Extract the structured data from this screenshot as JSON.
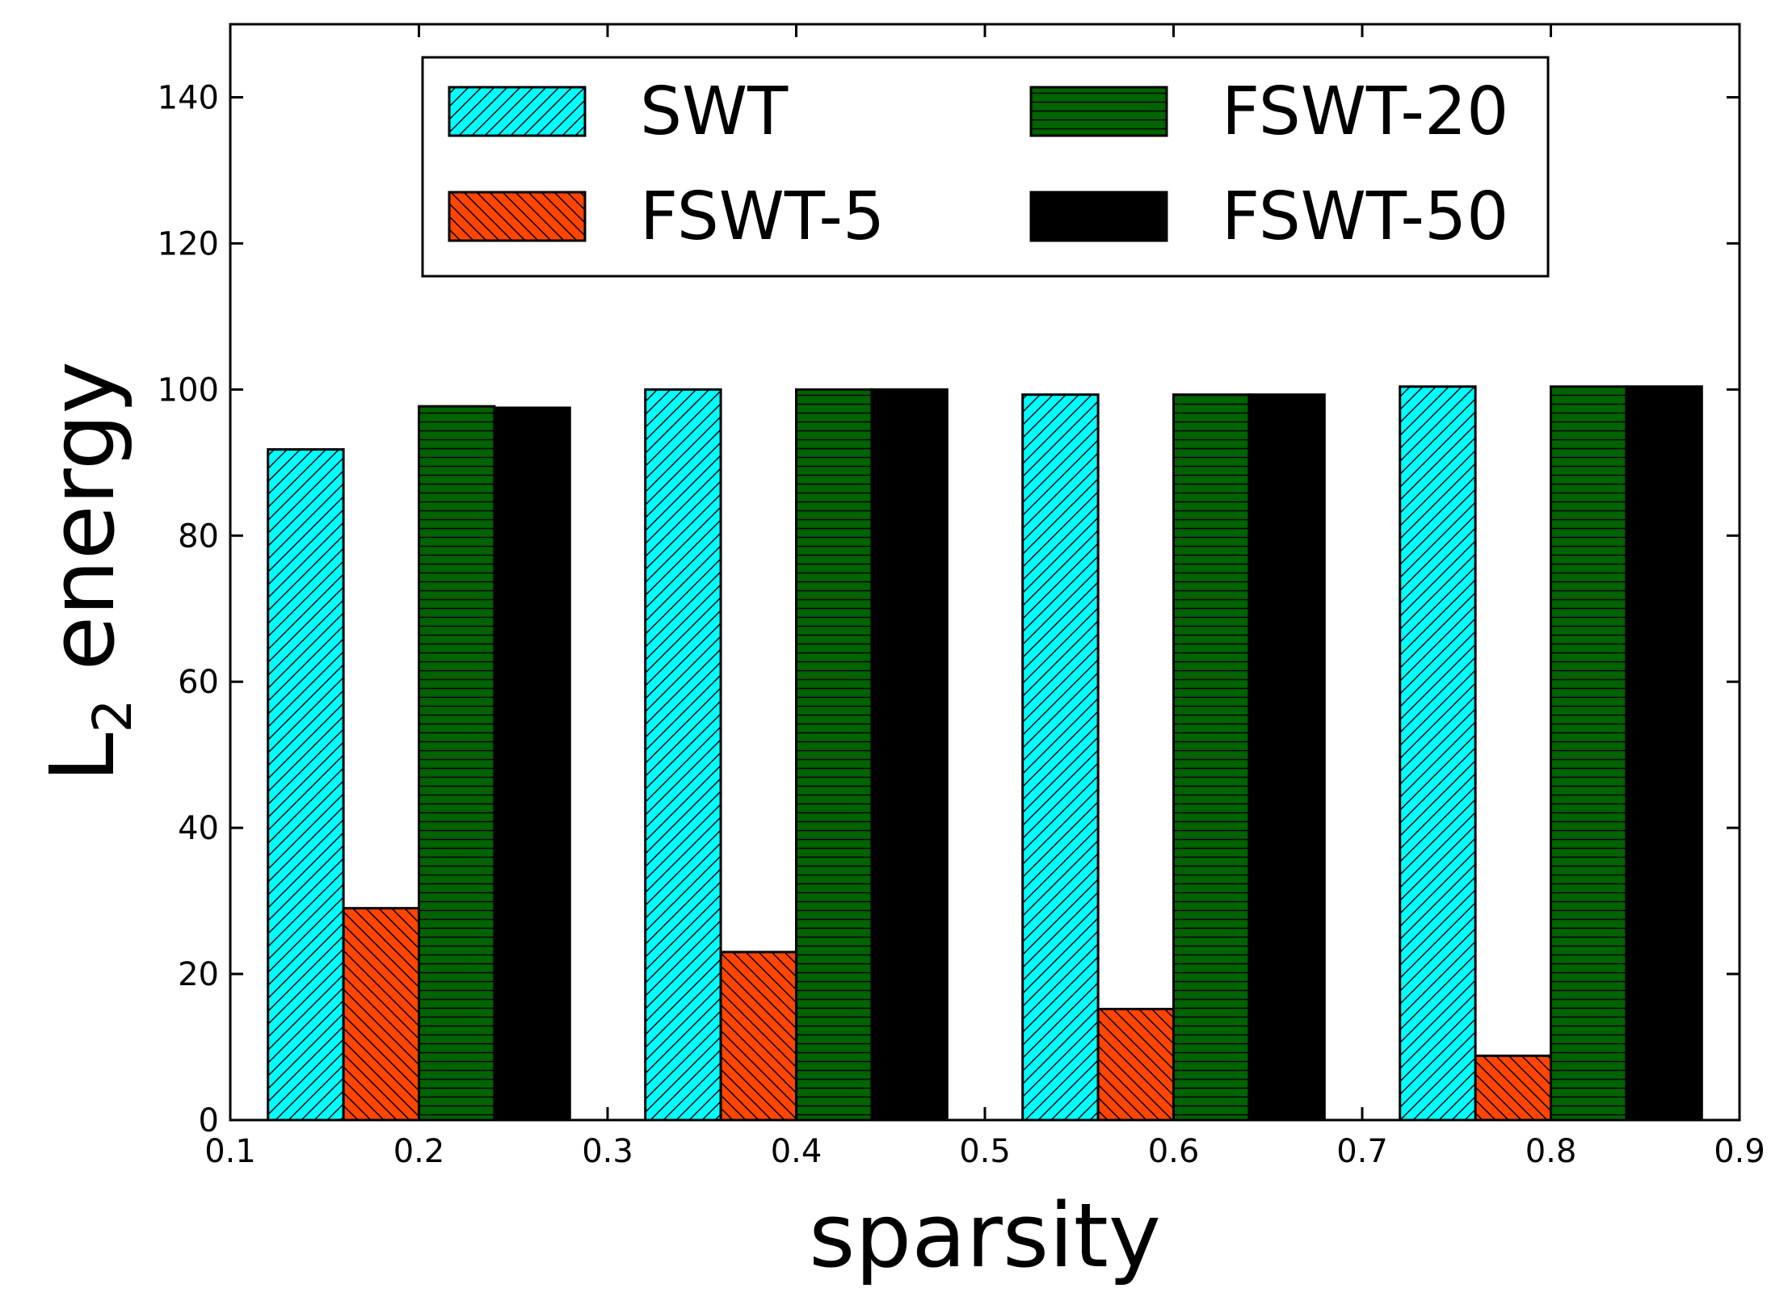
{
  "chart_data": {
    "type": "bar",
    "title": "",
    "xlabel": "sparsity",
    "ylabel": {
      "main": "L",
      "subscript": "2",
      "rest": " energy"
    },
    "xlim": [
      0.1,
      0.9
    ],
    "ylim": [
      0,
      150
    ],
    "x_ticks": [
      "0.1",
      "0.2",
      "0.3",
      "0.4",
      "0.5",
      "0.6",
      "0.7",
      "0.8",
      "0.9"
    ],
    "y_ticks": [
      "0",
      "20",
      "40",
      "60",
      "80",
      "100",
      "120",
      "140"
    ],
    "grid": false,
    "legend_position": "top-center",
    "group_centers": [
      0.2,
      0.4,
      0.6,
      0.8
    ],
    "bar_width": 0.04,
    "series": [
      {
        "name": "SWT",
        "color": "#00ffff",
        "hatch": "diagonal-up",
        "values": [
          91.8,
          100.0,
          99.3,
          100.4
        ]
      },
      {
        "name": "FSWT-5",
        "color": "#ff4500",
        "hatch": "diagonal-down",
        "values": [
          29.0,
          23.0,
          15.2,
          8.8
        ]
      },
      {
        "name": "FSWT-20",
        "color": "#006400",
        "hatch": "horizontal",
        "values": [
          97.7,
          100.0,
          99.3,
          100.4
        ]
      },
      {
        "name": "FSWT-50",
        "color": "#000000",
        "hatch": "none",
        "values": [
          97.5,
          100.0,
          99.3,
          100.4
        ]
      }
    ]
  }
}
